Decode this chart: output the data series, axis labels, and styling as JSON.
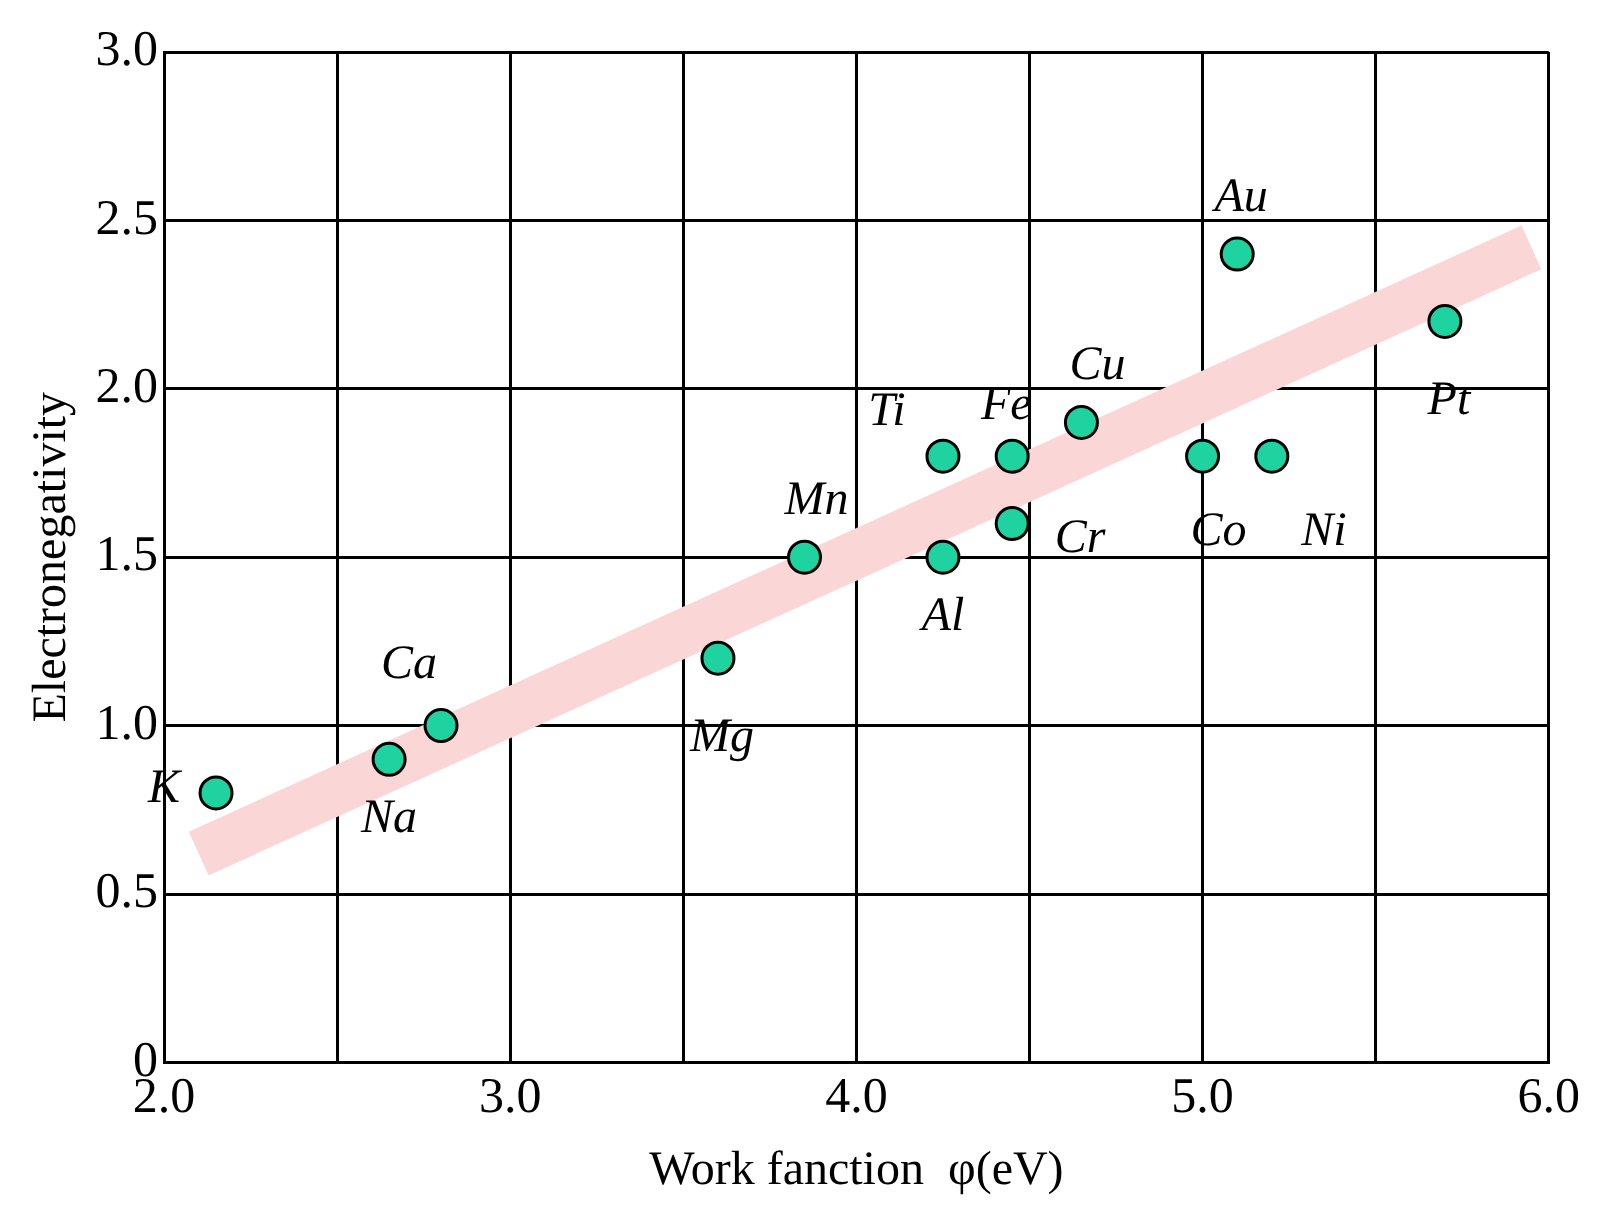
{
  "chart_data": {
    "type": "scatter",
    "xlabel": "Work fanction  φ(eV)",
    "ylabel": "Electronegativity",
    "xlim": [
      2,
      6
    ],
    "ylim": [
      0,
      3
    ],
    "xticks": [
      {
        "value": 2,
        "label": "2.0"
      },
      {
        "value": 2.5,
        "label": null
      },
      {
        "value": 3,
        "label": "3.0"
      },
      {
        "value": 3.5,
        "label": null
      },
      {
        "value": 4,
        "label": "4.0"
      },
      {
        "value": 4.5,
        "label": null
      },
      {
        "value": 5,
        "label": "5.0"
      },
      {
        "value": 5.5,
        "label": null
      },
      {
        "value": 6,
        "label": "6.0"
      }
    ],
    "yticks": [
      0,
      {
        "value": 0.5,
        "label": "0.5"
      },
      {
        "value": 1,
        "label": "1.0"
      },
      {
        "value": 1.5,
        "label": "1.5"
      },
      {
        "value": 2,
        "label": "2.0"
      },
      {
        "value": 2.5,
        "label": "2.5"
      },
      {
        "value": 3,
        "label": "3.0"
      }
    ],
    "grid": true,
    "legend": false,
    "marker": "circle",
    "series": [
      {
        "type": "line",
        "marker": "none",
        "color": "#fad6d6",
        "x": [
          2.1,
          5.95
        ],
        "values": [
          0.62,
          2.42
        ]
      },
      {
        "color": "#1fd3a0",
        "x": [
          2.15,
          2.65,
          2.8,
          3.6,
          3.85,
          4.25,
          4.25,
          4.45,
          4.45,
          4.65,
          5.0,
          5.2,
          5.1,
          5.7
        ],
        "values": [
          0.8,
          0.9,
          1.0,
          1.2,
          1.5,
          1.5,
          1.8,
          1.8,
          1.6,
          1.9,
          1.8,
          1.8,
          2.4,
          2.2
        ]
      }
    ],
    "annotations": [
      {
        "text": "K",
        "x": 2.15,
        "y": 0.8
      },
      {
        "text": "Na",
        "x": 2.65,
        "y": 0.9
      },
      {
        "text": "Ca",
        "x": 2.8,
        "y": 1.0
      },
      {
        "text": "Mg",
        "x": 3.6,
        "y": 1.2
      },
      {
        "text": "Mn",
        "x": 3.85,
        "y": 1.5
      },
      {
        "text": "Al",
        "x": 4.25,
        "y": 1.5
      },
      {
        "text": "Ti",
        "x": 4.25,
        "y": 1.8
      },
      {
        "text": "Fe",
        "x": 4.45,
        "y": 1.8
      },
      {
        "text": "Cr",
        "x": 4.45,
        "y": 1.6
      },
      {
        "text": "Cu",
        "x": 4.65,
        "y": 1.9
      },
      {
        "text": "Co",
        "x": 5.0,
        "y": 1.8
      },
      {
        "text": "Ni",
        "x": 5.2,
        "y": 1.8
      },
      {
        "text": "Au",
        "x": 5.1,
        "y": 2.4
      },
      {
        "text": "Pt",
        "x": 5.7,
        "y": 2.2
      }
    ]
  }
}
